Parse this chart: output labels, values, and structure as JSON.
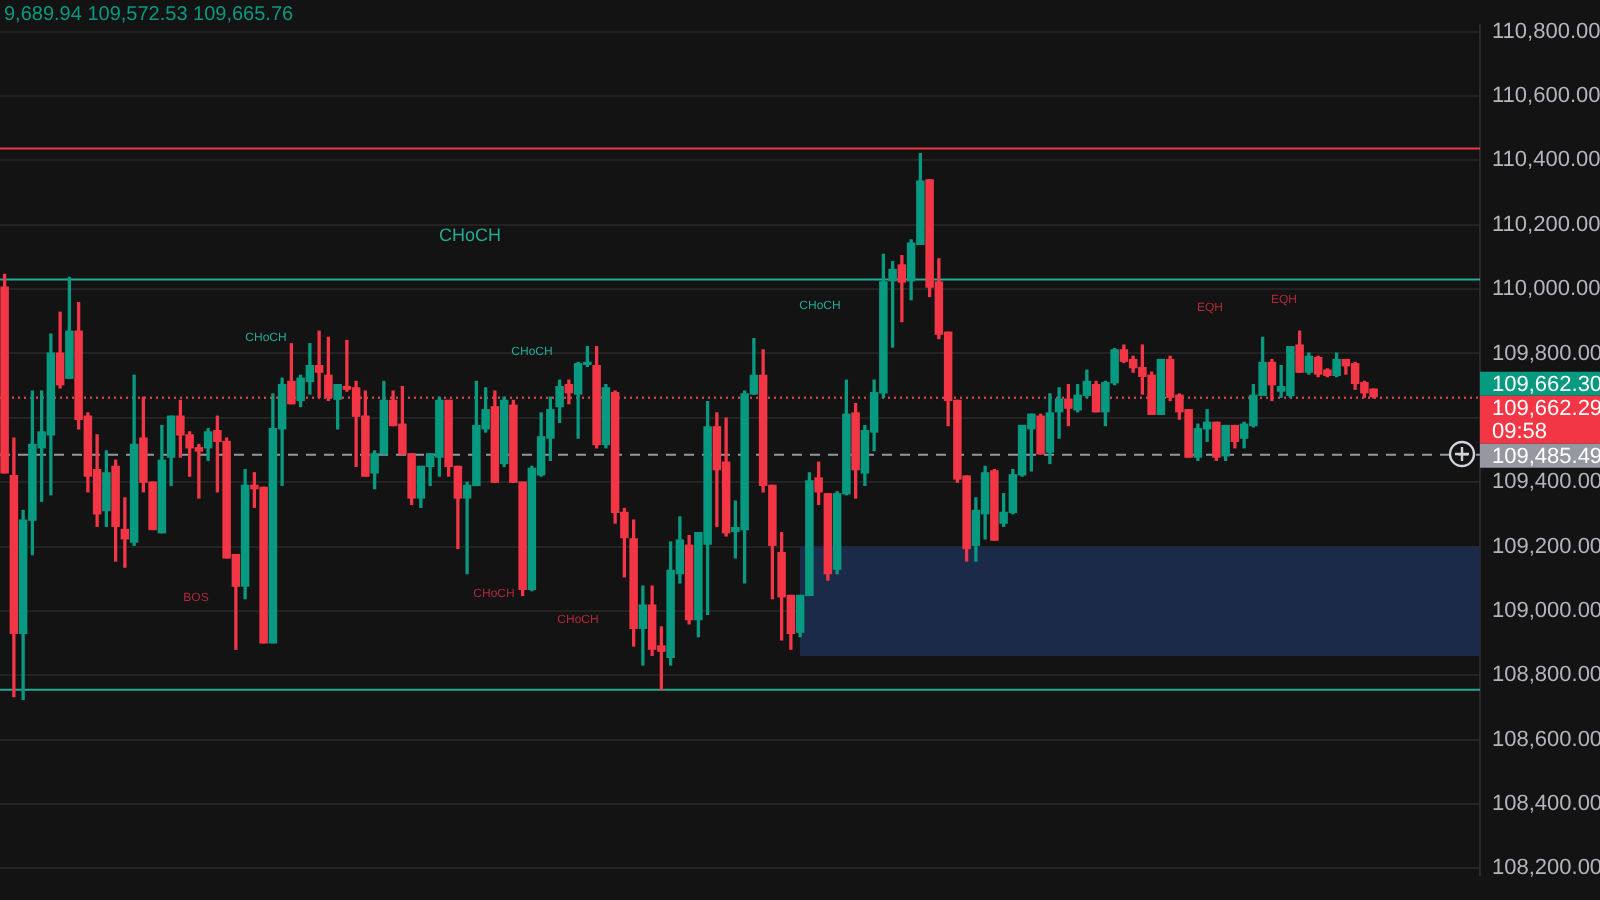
{
  "chart_data": {
    "type": "candlestick",
    "categories": [
      null,
      null,
      null,
      null,
      null,
      null,
      null,
      null,
      null,
      null,
      null,
      null,
      null,
      null,
      null,
      null,
      null,
      null,
      null,
      null,
      null,
      null,
      null,
      null,
      null,
      null,
      null,
      null,
      null,
      null,
      null,
      null,
      null,
      null,
      null,
      null,
      null,
      null,
      null,
      null,
      null,
      null,
      null,
      null,
      null,
      null,
      null,
      null,
      null,
      null,
      null,
      null,
      null,
      null,
      null,
      null,
      null,
      null,
      null,
      null,
      null,
      null,
      null,
      null,
      null,
      null,
      null,
      null,
      null,
      null,
      null,
      null,
      null,
      null,
      null,
      null,
      null,
      null,
      null,
      null,
      null,
      null,
      null,
      null,
      null,
      null,
      null,
      null,
      null,
      null,
      null,
      null,
      null,
      null,
      null,
      null,
      null,
      null,
      null,
      null,
      null,
      null,
      null,
      null,
      null,
      null,
      null,
      null,
      null,
      null,
      null,
      null,
      null,
      null,
      null,
      null,
      null,
      null,
      null,
      null,
      null,
      null,
      null,
      null,
      null,
      null,
      null,
      null,
      null,
      null,
      null,
      null,
      null,
      null,
      null,
      null,
      null,
      null,
      null,
      null,
      null,
      null,
      null,
      null,
      null,
      null,
      null,
      null,
      null,
      null,
      null,
      null,
      null,
      null,
      null,
      null,
      null,
      null,
      null,
      null
    ],
    "ohlc": [
      [
        110006,
        110046,
        109429,
        109429
      ],
      [
        109420,
        109537,
        108734,
        108930
      ],
      [
        108930,
        109312,
        108725,
        109282
      ],
      [
        109282,
        109683,
        109175,
        109517
      ],
      [
        109507,
        109683,
        109341,
        109556
      ],
      [
        109547,
        109860,
        109361,
        109801
      ],
      [
        109801,
        109928,
        109693,
        109703
      ],
      [
        109723,
        110036,
        109723,
        109869
      ],
      [
        109869,
        109958,
        109566,
        109595
      ],
      [
        109605,
        109615,
        109370,
        109419
      ],
      [
        109439,
        109547,
        109263,
        109302
      ],
      [
        109312,
        109497,
        109263,
        109429
      ],
      [
        109449,
        109468,
        109155,
        109263
      ],
      [
        109253,
        109351,
        109136,
        109224
      ],
      [
        109214,
        109732,
        109204,
        109517
      ],
      [
        109537,
        109664,
        109370,
        109400
      ],
      [
        109400,
        109400,
        109253,
        109253
      ],
      [
        109243,
        109576,
        109243,
        109468
      ],
      [
        109478,
        109605,
        109390,
        109605
      ],
      [
        109605,
        109654,
        109478,
        109547
      ],
      [
        109547,
        109556,
        109419,
        109507
      ],
      [
        109507,
        109517,
        109351,
        109497
      ],
      [
        109507,
        109566,
        109468,
        109556
      ],
      [
        109560,
        109605,
        109370,
        109527
      ],
      [
        109527,
        109537,
        109165,
        109165
      ],
      [
        109175,
        109175,
        108881,
        109077
      ],
      [
        109077,
        109439,
        109038,
        109390
      ],
      [
        109390,
        109429,
        109322,
        109380
      ],
      [
        109384,
        109384,
        108901,
        108901
      ],
      [
        108901,
        109674,
        108901,
        109566
      ],
      [
        109566,
        109723,
        109390,
        109703
      ],
      [
        109713,
        109830,
        109644,
        109644
      ],
      [
        109654,
        109732,
        109635,
        109723
      ],
      [
        109713,
        109830,
        109674,
        109762
      ],
      [
        109762,
        109869,
        109664,
        109742
      ],
      [
        109732,
        109850,
        109654,
        109664
      ],
      [
        109658,
        109703,
        109566,
        109703
      ],
      [
        109697,
        109840,
        109683,
        109689
      ],
      [
        109693,
        109713,
        109449,
        109605
      ],
      [
        109605,
        109683,
        109419,
        109419
      ],
      [
        109429,
        109497,
        109380,
        109488
      ],
      [
        109488,
        109713,
        109488,
        109654
      ],
      [
        109654,
        109683,
        109576,
        109576
      ],
      [
        109580,
        109697,
        109488,
        109488
      ],
      [
        109488,
        109488,
        109331,
        109351
      ],
      [
        109351,
        109449,
        109322,
        109449
      ],
      [
        109449,
        109488,
        109390,
        109488
      ],
      [
        109478,
        109664,
        109419,
        109654
      ],
      [
        109654,
        109654,
        109419,
        109449
      ],
      [
        109449,
        109449,
        109194,
        109351
      ],
      [
        109351,
        109400,
        109116,
        109390
      ],
      [
        109390,
        109713,
        109390,
        109576
      ],
      [
        109566,
        109693,
        109556,
        109625
      ],
      [
        109634,
        109683,
        109400,
        109400
      ],
      [
        109458,
        109664,
        109449,
        109654
      ],
      [
        109639,
        109654,
        109400,
        109400
      ],
      [
        109400,
        109400,
        109048,
        109067
      ],
      [
        109067,
        109449,
        109063,
        109443
      ],
      [
        109423,
        109615,
        109419,
        109541
      ],
      [
        109537,
        109664,
        109468,
        109625
      ],
      [
        109635,
        109717,
        109586,
        109697
      ],
      [
        109703,
        109717,
        109644,
        109678
      ],
      [
        109674,
        109772,
        109537,
        109768
      ],
      [
        109766,
        109821,
        109760,
        109770
      ],
      [
        109762,
        109821,
        109507,
        109517
      ],
      [
        109517,
        109703,
        109507,
        109693
      ],
      [
        109678,
        109683,
        109273,
        109306
      ],
      [
        109306,
        109318,
        109106,
        109228
      ],
      [
        109224,
        109282,
        108891,
        108946
      ],
      [
        108946,
        109077,
        108832,
        109018
      ],
      [
        109018,
        109077,
        108862,
        108881
      ],
      [
        108891,
        108950,
        108755,
        108875
      ],
      [
        108856,
        109214,
        108832,
        109126
      ],
      [
        109116,
        109292,
        109087,
        109220
      ],
      [
        109204,
        109234,
        108960,
        108973
      ],
      [
        108973,
        109243,
        108920,
        109243
      ],
      [
        109208,
        109650,
        108989,
        109572
      ],
      [
        109572,
        109615,
        109263,
        109439
      ],
      [
        109462,
        109599,
        109233,
        109243
      ],
      [
        109247,
        109341,
        109165,
        109259
      ],
      [
        109253,
        109683,
        109087,
        109674
      ],
      [
        109674,
        109846,
        109674,
        109732
      ],
      [
        109732,
        109811,
        109370,
        109390
      ],
      [
        109390,
        109390,
        109038,
        109204
      ],
      [
        109181,
        109243,
        108910,
        109044
      ],
      [
        109048,
        109048,
        108881,
        108930
      ],
      [
        108934,
        109048,
        108920,
        109048
      ],
      [
        109048,
        109429,
        109048,
        109404
      ],
      [
        109413,
        109462,
        109331,
        109370
      ],
      [
        109364,
        109364,
        109096,
        109116
      ],
      [
        109130,
        109370,
        109116,
        109364
      ],
      [
        109364,
        109717,
        109361,
        109611
      ],
      [
        109615,
        109644,
        109351,
        109439
      ],
      [
        109429,
        109576,
        109390,
        109560
      ],
      [
        109556,
        109717,
        109498,
        109678
      ],
      [
        109678,
        110108,
        109664,
        110022
      ],
      [
        110026,
        110085,
        109820,
        110061
      ],
      [
        110075,
        110104,
        109899,
        110022
      ],
      [
        110026,
        110153,
        109967,
        110143
      ],
      [
        110139,
        110421,
        110139,
        110335
      ],
      [
        110339,
        110339,
        109977,
        110006
      ],
      [
        110022,
        110094,
        109846,
        109860
      ],
      [
        109866,
        109866,
        109576,
        109654
      ],
      [
        109654,
        109654,
        109400,
        109410
      ],
      [
        109419,
        109419,
        109155,
        109194
      ],
      [
        109204,
        109351,
        109155,
        109312
      ],
      [
        109302,
        109449,
        109224,
        109429
      ],
      [
        109435,
        109439,
        109220,
        109220
      ],
      [
        109273,
        109364,
        109263,
        109306
      ],
      [
        109306,
        109439,
        109302,
        109423
      ],
      [
        109423,
        109576,
        109419,
        109576
      ],
      [
        109566,
        109611,
        109435,
        109611
      ],
      [
        109605,
        109611,
        109488,
        109488
      ],
      [
        109494,
        109674,
        109458,
        109615
      ],
      [
        109619,
        109693,
        109537,
        109658
      ],
      [
        109658,
        109703,
        109576,
        109630
      ],
      [
        109625,
        109703,
        109619,
        109670
      ],
      [
        109670,
        109748,
        109664,
        109713
      ],
      [
        109703,
        109713,
        109619,
        109619
      ],
      [
        109619,
        109713,
        109576,
        109709
      ],
      [
        109709,
        109815,
        109703,
        109811
      ],
      [
        109811,
        109826,
        109772,
        109776
      ],
      [
        109781,
        109791,
        109742,
        109756
      ],
      [
        109756,
        109826,
        109674,
        109729
      ],
      [
        109732,
        109742,
        109611,
        109611
      ],
      [
        109611,
        109781,
        109611,
        109781
      ],
      [
        109781,
        109791,
        109654,
        109664
      ],
      [
        109670,
        109674,
        109596,
        109619
      ],
      [
        109625,
        109625,
        109478,
        109478
      ],
      [
        109478,
        109580,
        109468,
        109566
      ],
      [
        109566,
        109625,
        109527,
        109586
      ],
      [
        109586,
        109586,
        109468,
        109478
      ],
      [
        109482,
        109576,
        109468,
        109576
      ],
      [
        109576,
        109576,
        109507,
        109527
      ],
      [
        109537,
        109586,
        109507,
        109580
      ],
      [
        109576,
        109703,
        109572,
        109670
      ],
      [
        109670,
        109850,
        109670,
        109772
      ],
      [
        109772,
        109781,
        109654,
        109703
      ],
      [
        109683,
        109762,
        109664,
        109697
      ],
      [
        109670,
        109821,
        109664,
        109821
      ],
      [
        109826,
        109869,
        109742,
        109742
      ],
      [
        109742,
        109801,
        109736,
        109791
      ],
      [
        109787,
        109791,
        109728,
        109736
      ],
      [
        109748,
        109752,
        109728,
        109732
      ],
      [
        109732,
        109801,
        109728,
        109781
      ],
      [
        109781,
        109781,
        109736,
        109762
      ],
      [
        109768,
        109772,
        109689,
        109707
      ],
      [
        109709,
        109713,
        109664,
        109678
      ],
      [
        109689,
        109689,
        109662,
        109666
      ],
      null,
      null,
      null,
      null,
      null,
      null,
      null,
      null,
      null,
      null,
      null
    ],
    "ylim": [
      108180,
      110820
    ],
    "yticks": [
      {
        "value": 108200,
        "label": "108,200.00"
      },
      {
        "value": 108400,
        "label": "108,400.00"
      },
      {
        "value": 108600,
        "label": "108,600.00"
      },
      {
        "value": 108800,
        "label": "108,800.00"
      },
      {
        "value": 109000,
        "label": "109,000.00"
      },
      {
        "value": 109200,
        "label": "109,200.00"
      },
      {
        "value": 109400,
        "label": "109,400.00"
      },
      {
        "value": 109600,
        "label": null
      },
      {
        "value": 109800,
        "label": "109,800.00"
      },
      {
        "value": 110000,
        "label": "110,000.00"
      },
      {
        "value": 110200,
        "label": "110,200.00"
      },
      {
        "value": 110400,
        "label": "110,400.00"
      },
      {
        "value": 110600,
        "label": "110,600.00"
      },
      {
        "value": 110800,
        "label": "110,800.00"
      }
    ],
    "tick_labels": "y",
    "grid": "y",
    "legend": false,
    "ref_lines": [
      {
        "axis": "y",
        "value": 110030,
        "color": "#22ab94",
        "line_style": "solid"
      },
      {
        "axis": "y",
        "value": 110437,
        "color": "#f23645",
        "line_style": "solid"
      },
      {
        "axis": "y",
        "value": 108755,
        "color": "#22ab94",
        "line_style": "solid"
      },
      {
        "axis": "y",
        "value": 109662.3,
        "label": "109,662.30",
        "color": "#089981",
        "line_style": "dotted"
      },
      {
        "axis": "y",
        "value": 109662.29,
        "label": "109,662.29",
        "color": "#f23645",
        "line_style": "dotted"
      },
      {
        "axis": "y",
        "value": 109485.49,
        "label": "109,485.49",
        "color": "#9598a1",
        "line_style": "dashed"
      }
    ],
    "bands": [
      {
        "axis": "y",
        "from": 108860,
        "to": 109200,
        "color": "#1c2a4a"
      }
    ],
    "annotations": [
      "9,689.94 109,572.53 109,665.76",
      "CHoCH",
      "CHoCH",
      "BOS",
      "CHoCH",
      "CHoCH",
      "CHoCH",
      "CHoCH",
      "EQH",
      "EQH",
      "09:58"
    ]
  }
}
